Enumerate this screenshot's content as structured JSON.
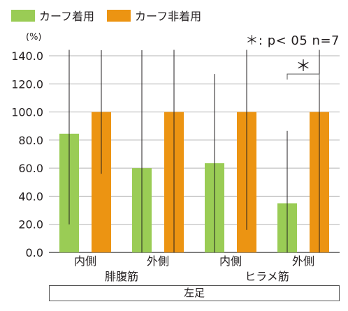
{
  "legend": [
    {
      "label": "カーフ着用",
      "color": "#9acc55"
    },
    {
      "label": "カーフ非着用",
      "color": "#ec9412"
    }
  ],
  "unit_label": "(%)",
  "significance_note": "＊: p< 05  n=7",
  "significance_marker": "＊",
  "footer_label": "左足",
  "chart_data": {
    "type": "bar",
    "categories": [
      "内側",
      "外側",
      "内側",
      "外側"
    ],
    "groups": [
      {
        "label": "腓腹筋",
        "categories": [
          "内側",
          "外側"
        ]
      },
      {
        "label": "ヒラメ筋",
        "categories": [
          "内側",
          "外側"
        ]
      }
    ],
    "series": [
      {
        "name": "カーフ着用",
        "color": "#9acc55",
        "values": [
          84.5,
          60.0,
          63.5,
          35.0
        ],
        "error": [
          64.5,
          84.0,
          63.5,
          51.5
        ]
      },
      {
        "name": "カーフ非着用",
        "color": "#ec9412",
        "values": [
          100.0,
          100.0,
          100.0,
          100.0
        ],
        "error": [
          44.0,
          100.0,
          84.0,
          100.0
        ]
      }
    ],
    "y_ticks": [
      "0.0",
      "20.0",
      "40.0",
      "60.0",
      "80.0",
      "100.0",
      "120.0",
      "140.0"
    ],
    "ylim": [
      0,
      140
    ],
    "grid": true,
    "significance": {
      "category_index": 3,
      "marker": "＊"
    }
  }
}
